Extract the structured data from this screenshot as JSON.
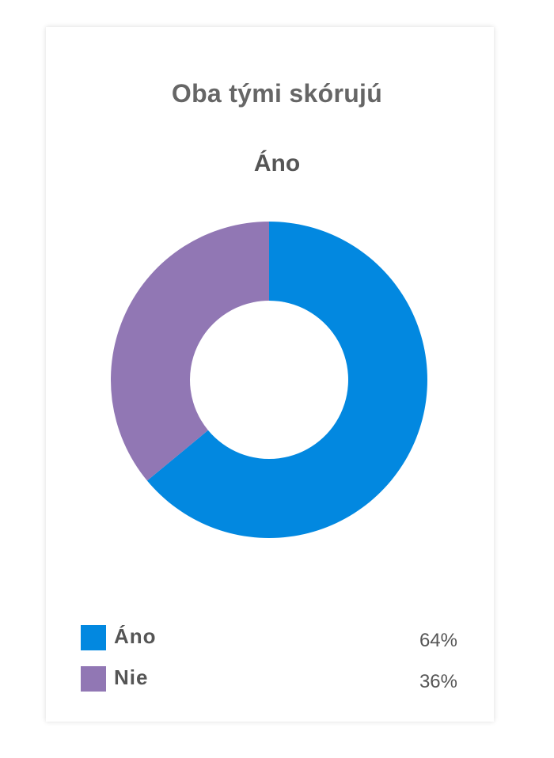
{
  "chart_data": {
    "type": "pie",
    "title": "Oba tými skórujú",
    "subtitle": "Áno",
    "categories": [
      "Áno",
      "Nie"
    ],
    "values": [
      64,
      36
    ],
    "value_labels": [
      "64%",
      "36%"
    ],
    "colors": [
      "#0288E0",
      "#9177B4"
    ],
    "donut": true,
    "legend_position": "bottom"
  }
}
